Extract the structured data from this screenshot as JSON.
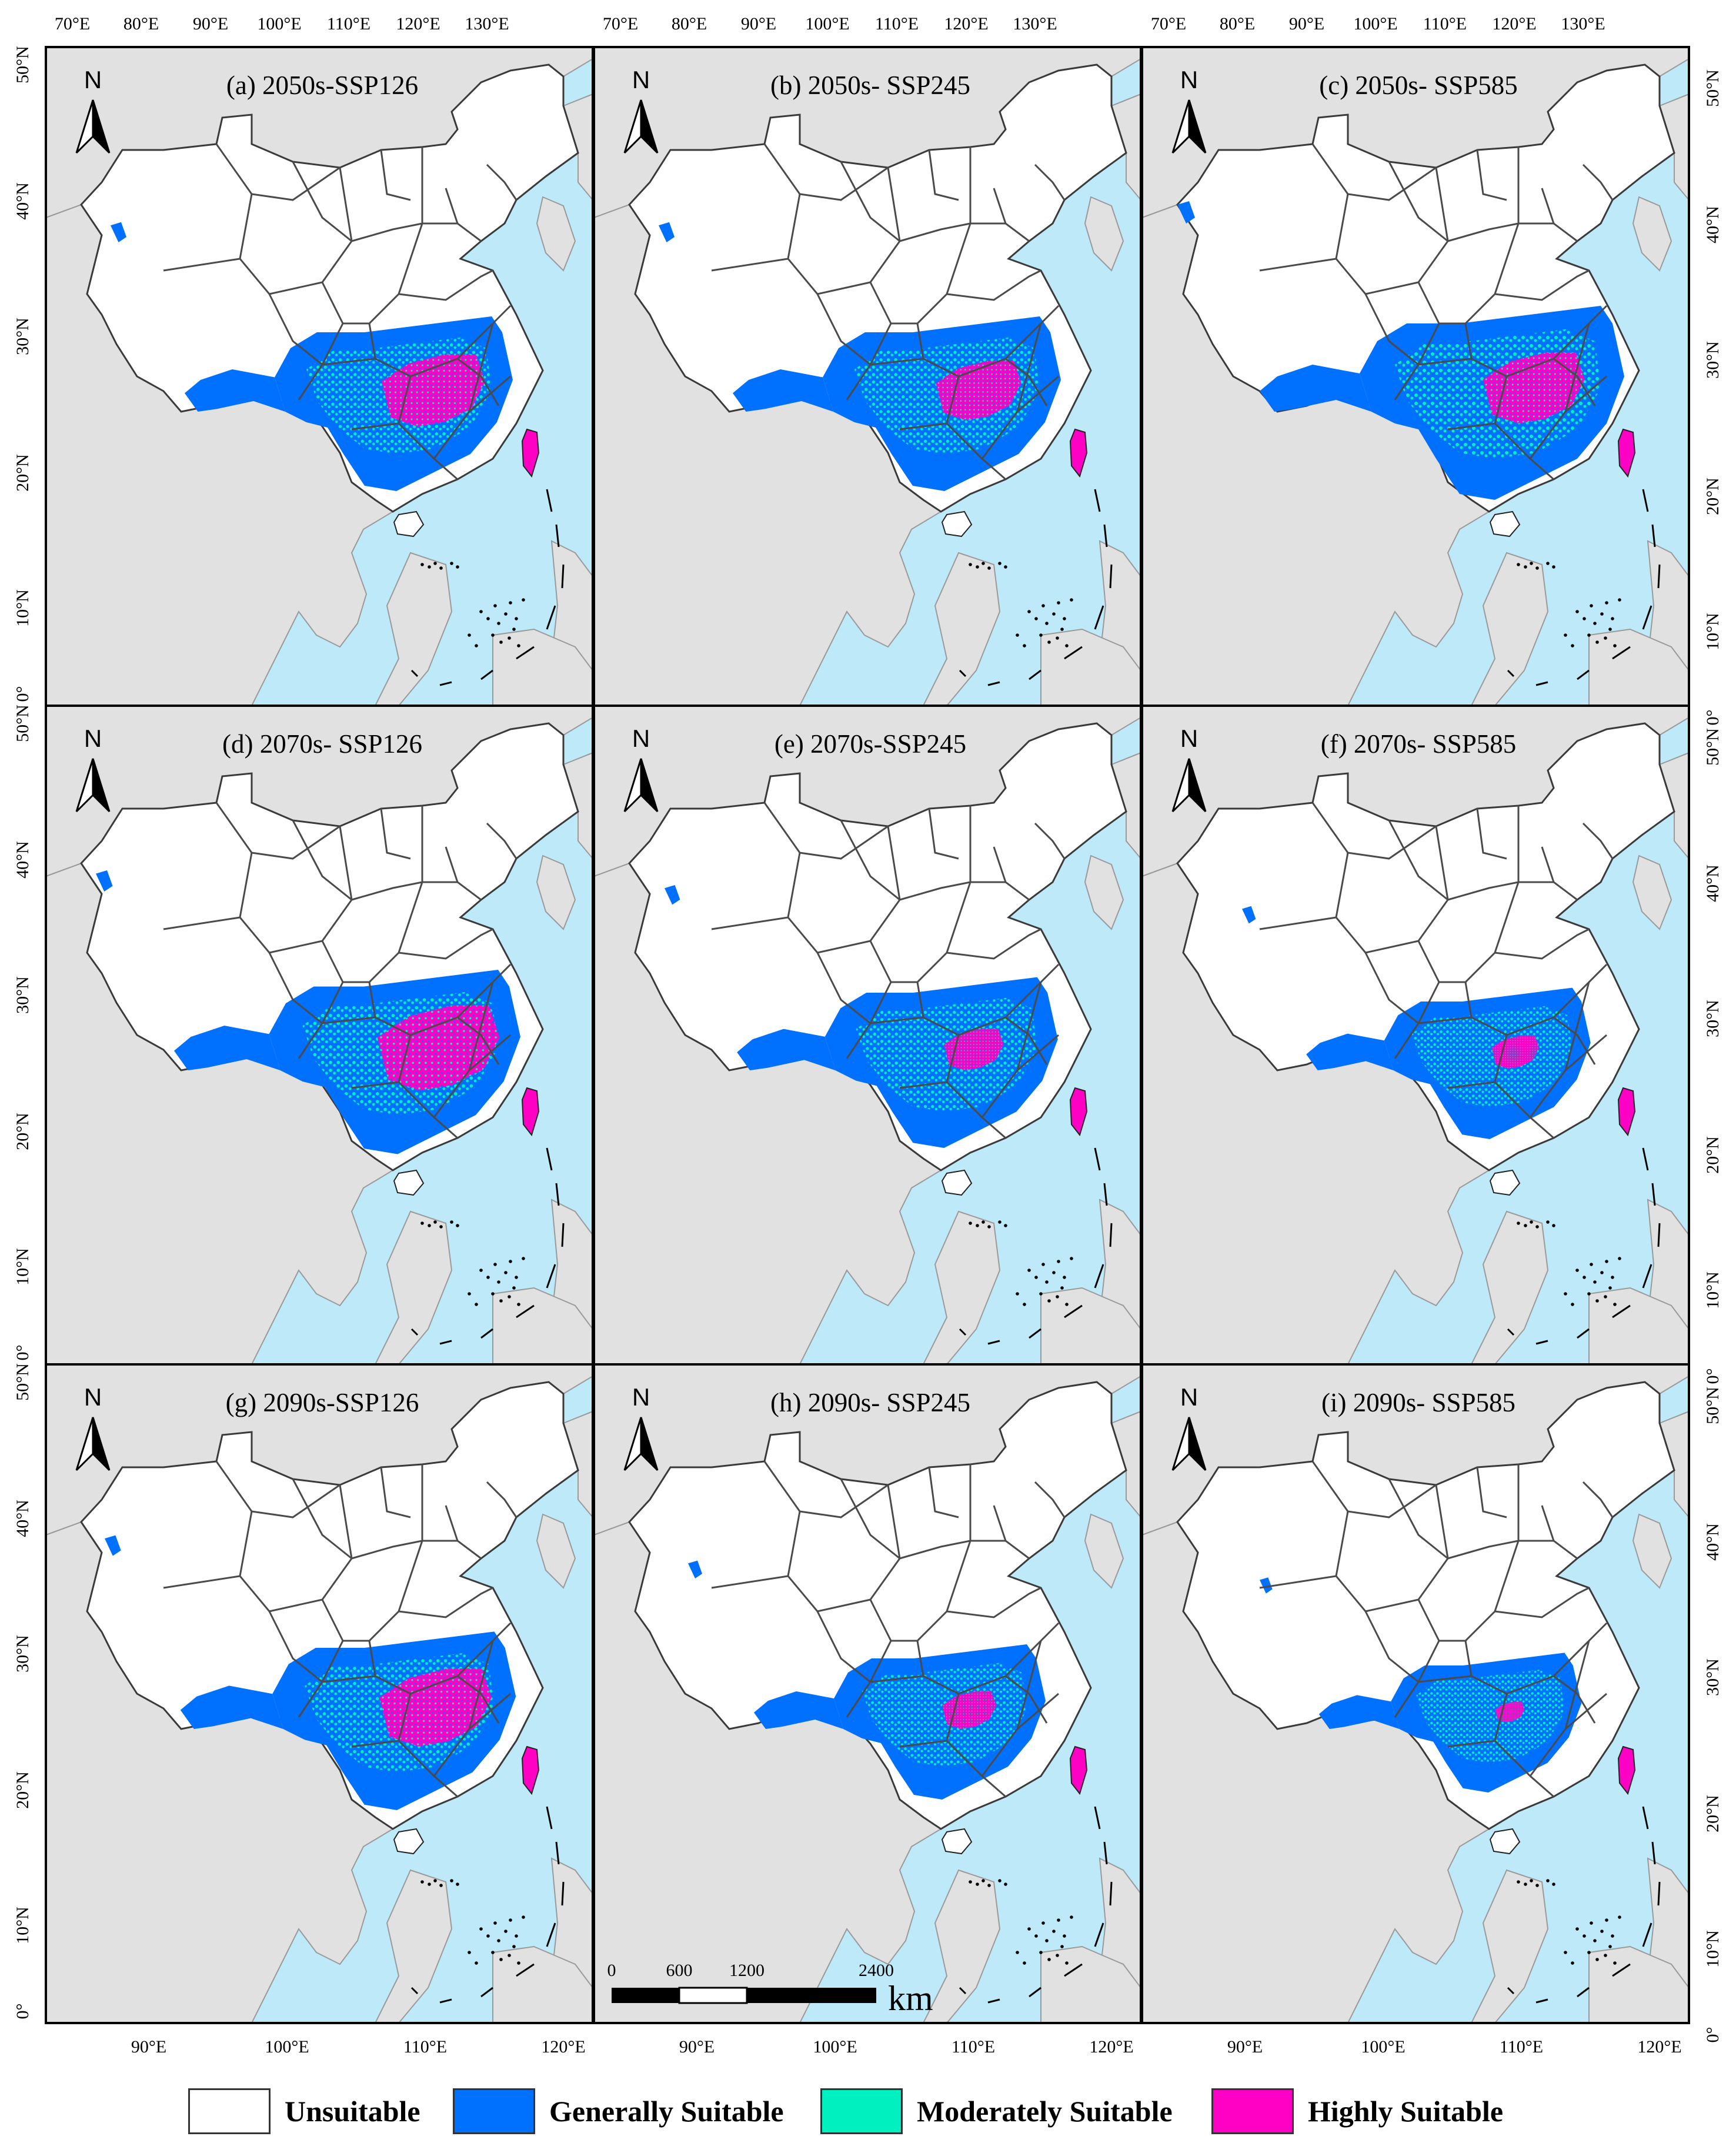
{
  "panels": [
    {
      "id": "a",
      "title": "(a) 2050s-SSP126"
    },
    {
      "id": "b",
      "title": "(b)  2050s- SSP245"
    },
    {
      "id": "c",
      "title": "(c)  2050s- SSP585"
    },
    {
      "id": "d",
      "title": "(d) 2070s- SSP126"
    },
    {
      "id": "e",
      "title": "(e)  2070s-SSP245"
    },
    {
      "id": "f",
      "title": "(f)  2070s- SSP585"
    },
    {
      "id": "g",
      "title": "(g)  2090s-SSP126"
    },
    {
      "id": "h",
      "title": "(h)  2090s- SSP245"
    },
    {
      "id": "i",
      "title": "(i)  2090s- SSP585"
    }
  ],
  "suitability_extent": [
    0.9,
    0.9,
    1.0,
    0.95,
    0.88,
    0.78,
    0.92,
    0.8,
    0.72
  ],
  "highly_suitable_extent": [
    0.85,
    0.7,
    0.75,
    0.95,
    0.5,
    0.45,
    0.9,
    0.5,
    0.3
  ],
  "top_axis_labels": [
    "70°E",
    "80°E",
    "90°E",
    "100°E",
    "110°E",
    "120°E",
    "130°E"
  ],
  "bottom_axis_labels": [
    "90°E",
    "100°E",
    "110°E",
    "120°E"
  ],
  "left_axis_labels": [
    "50°N",
    "40°N",
    "30°N",
    "20°N",
    "10°N",
    "0°"
  ],
  "right_axis_labels": [
    "50°N",
    "40°N",
    "30°N",
    "20°N",
    "10°N",
    "0°"
  ],
  "north_label": "N",
  "scale_bar": {
    "ticks": [
      "0",
      "600",
      "1200",
      "2400"
    ],
    "unit": "km"
  },
  "legend": [
    {
      "label": "Unsuitable",
      "color": "#ffffff"
    },
    {
      "label": "Generally Suitable",
      "color": "#0070ff"
    },
    {
      "label": "Moderately Suitable",
      "color": "#00f0c0"
    },
    {
      "label": "Highly Suitable",
      "color": "#ff00c5"
    }
  ],
  "colors": {
    "sea": "#bde9f9",
    "land": "#e1e1e1",
    "frame": "#000000",
    "province_border": "#4a4a4a"
  }
}
